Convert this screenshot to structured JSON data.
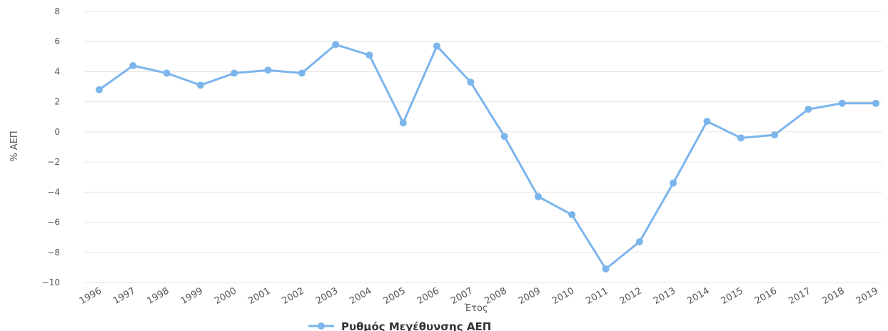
{
  "chart_data": {
    "type": "line",
    "title": "",
    "xlabel": "Έτος",
    "ylabel": "% ΑΕΠ",
    "ylim": [
      -10,
      8
    ],
    "yticks": [
      8,
      6,
      4,
      2,
      0,
      -2,
      -4,
      -6,
      -8,
      -10
    ],
    "ytick_labels": [
      "8",
      "6",
      "4",
      "2",
      "0",
      "−2",
      "−4",
      "−6",
      "−8",
      "−10"
    ],
    "grid": true,
    "legend_position": "bottom",
    "categories": [
      "1996",
      "1997",
      "1998",
      "1999",
      "2000",
      "2001",
      "2002",
      "2003",
      "2004",
      "2005",
      "2006",
      "2007",
      "2008",
      "2009",
      "2010",
      "2011",
      "2012",
      "2013",
      "2014",
      "2015",
      "2016",
      "2017",
      "2018",
      "2019"
    ],
    "series": [
      {
        "name": "Ρυθμός Μεγέθυνσης ΑΕΠ",
        "color": "#7cb5ec",
        "values": [
          2.8,
          4.4,
          3.9,
          3.1,
          3.9,
          4.1,
          3.9,
          5.8,
          5.1,
          0.6,
          5.7,
          3.3,
          -0.3,
          -4.3,
          -5.5,
          -9.1,
          -7.3,
          -3.4,
          0.7,
          -0.4,
          -0.2,
          1.5,
          1.9,
          1.9
        ]
      }
    ]
  }
}
